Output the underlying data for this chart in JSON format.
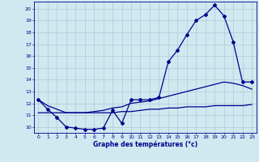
{
  "xlabel": "Graphe des températures (°c)",
  "hours": [
    0,
    1,
    2,
    3,
    4,
    5,
    6,
    7,
    8,
    9,
    10,
    11,
    12,
    13,
    14,
    15,
    16,
    17,
    18,
    19,
    20,
    21,
    22,
    23
  ],
  "temp_main": [
    12.3,
    11.5,
    10.8,
    10.0,
    9.9,
    9.8,
    9.8,
    9.9,
    11.4,
    10.3,
    12.3,
    12.3,
    12.3,
    12.5,
    15.5,
    16.5,
    17.8,
    19.0,
    19.5,
    20.3,
    19.4,
    17.2,
    13.8,
    13.8
  ],
  "temp_upper": [
    12.3,
    11.8,
    11.5,
    11.2,
    11.2,
    11.2,
    11.3,
    11.4,
    11.6,
    11.7,
    12.0,
    12.1,
    12.2,
    12.4,
    12.6,
    12.8,
    13.0,
    13.2,
    13.4,
    13.6,
    13.8,
    13.7,
    13.5,
    13.2
  ],
  "temp_lower": [
    11.2,
    11.2,
    11.2,
    11.2,
    11.2,
    11.2,
    11.2,
    11.2,
    11.2,
    11.3,
    11.3,
    11.4,
    11.5,
    11.5,
    11.6,
    11.6,
    11.7,
    11.7,
    11.7,
    11.8,
    11.8,
    11.8,
    11.8,
    11.9
  ],
  "ylim_min": 9.5,
  "ylim_max": 20.6,
  "xlim_min": -0.5,
  "xlim_max": 23.5,
  "yticks": [
    10,
    11,
    12,
    13,
    14,
    15,
    16,
    17,
    18,
    19,
    20
  ],
  "xticks": [
    0,
    1,
    2,
    3,
    4,
    5,
    6,
    7,
    8,
    9,
    10,
    11,
    12,
    13,
    14,
    15,
    16,
    17,
    18,
    19,
    20,
    21,
    22,
    23
  ],
  "line_color": "#00008B",
  "grid_color": "#a8cdd8",
  "bg_color": "#d0e8f0",
  "marker": "D",
  "marker_size": 2.0,
  "linewidth": 0.9
}
